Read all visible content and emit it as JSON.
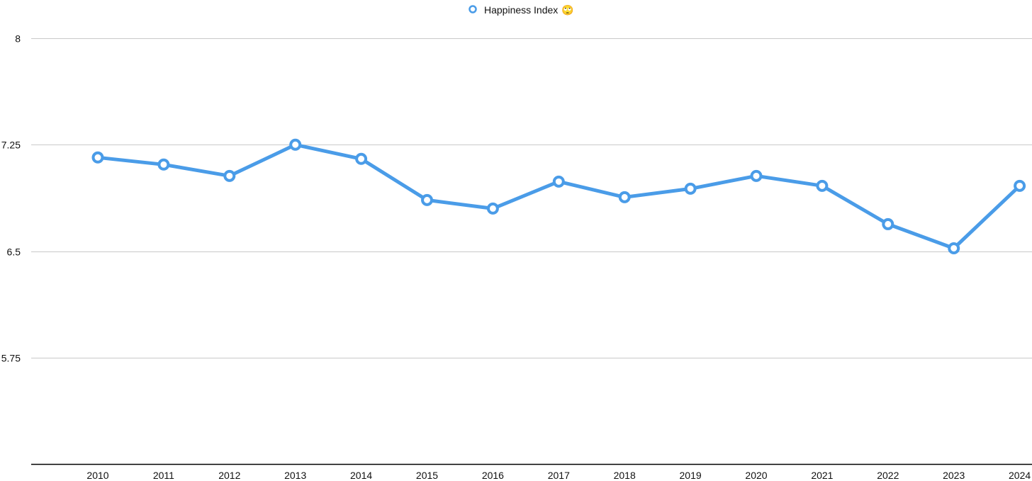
{
  "chart_data": {
    "type": "line",
    "title": "",
    "xlabel": "",
    "ylabel": "",
    "categories": [
      "2010",
      "2011",
      "2012",
      "2013",
      "2014",
      "2015",
      "2016",
      "2017",
      "2018",
      "2019",
      "2020",
      "2021",
      "2022",
      "2023",
      "2024"
    ],
    "series": [
      {
        "name": "Happiness Index",
        "color": "#4a9ce8",
        "values": [
          7.16,
          7.11,
          7.03,
          7.25,
          7.15,
          6.86,
          6.8,
          6.99,
          6.88,
          6.94,
          7.03,
          6.96,
          6.69,
          6.52,
          6.96
        ]
      }
    ],
    "ylim": [
      5.0,
      8.0
    ],
    "yticks": [
      "8",
      "7.25",
      "6.5",
      "5.75"
    ],
    "ytick_values": [
      8.0,
      7.25,
      6.5,
      5.75
    ],
    "grid": true,
    "legend": {
      "position": "top-center",
      "emoji": "🙄"
    }
  }
}
